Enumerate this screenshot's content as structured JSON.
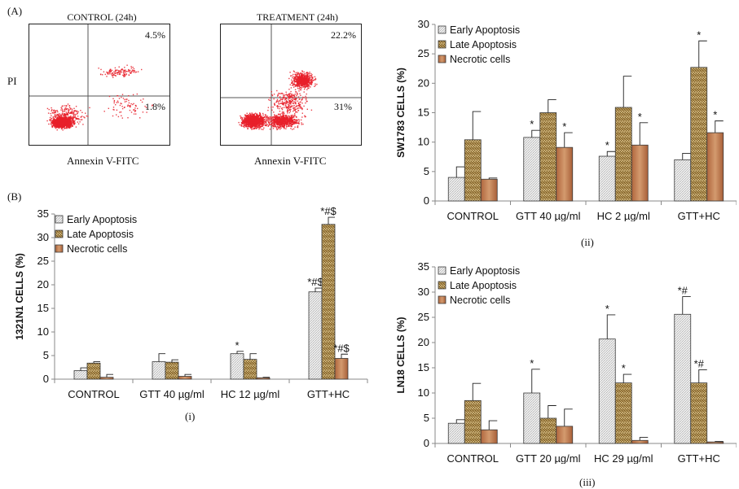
{
  "panel_a_label": "(A)",
  "panel_b_label": "(B)",
  "flow": [
    {
      "title": "CONTROL (24h)",
      "upper_right": "4.5%",
      "lower_right": "1.8%",
      "xlabel": "Annexin V-FITC",
      "ylabel": "PI"
    },
    {
      "title": "TREATMENT (24h)",
      "upper_right": "22.2%",
      "lower_right": "31%",
      "xlabel": "Annexin V-FITC",
      "ylabel": ""
    }
  ],
  "chart_data": [
    {
      "id": "i",
      "type": "bar",
      "caption": "(i)",
      "ylabel": "1321N1 CELLS (%)",
      "ylim": [
        0,
        35
      ],
      "yticks": [
        0,
        5,
        10,
        15,
        20,
        25,
        30,
        35
      ],
      "categories": [
        "CONTROL",
        "GTT 40 µg/ml",
        "HC 12 µg/ml",
        "GTT+HC"
      ],
      "legend_position": "top-left",
      "series": [
        {
          "name": "Early Apoptosis",
          "values": [
            1.8,
            3.7,
            5.4,
            18.5
          ],
          "errors": [
            0.6,
            1.7,
            0.5,
            0.8
          ],
          "annotations": [
            "",
            "",
            "*",
            "*#$"
          ]
        },
        {
          "name": "Late Apoptosis",
          "values": [
            3.4,
            3.6,
            4.2,
            32.8
          ],
          "errors": [
            0.3,
            0.5,
            1.2,
            1.5
          ],
          "annotations": [
            "",
            "",
            "",
            "*#$"
          ]
        },
        {
          "name": "Necrotic cells",
          "values": [
            0.4,
            0.6,
            0.3,
            4.4
          ],
          "errors": [
            0.6,
            0.4,
            0.1,
            0.9
          ],
          "annotations": [
            "",
            "",
            "",
            "*#$"
          ]
        }
      ]
    },
    {
      "id": "ii",
      "type": "bar",
      "caption": "(ii)",
      "ylabel": "SW1783 CELLS (%)",
      "ylim": [
        0,
        30
      ],
      "yticks": [
        0,
        5,
        10,
        15,
        20,
        25,
        30
      ],
      "categories": [
        "CONTROL",
        "GTT 40 µg/ml",
        "HC 2 µg/ml",
        "GTT+HC"
      ],
      "legend_position": "top-left",
      "series": [
        {
          "name": "Early Apoptosis",
          "values": [
            4.0,
            10.8,
            7.6,
            7.0
          ],
          "errors": [
            1.8,
            1.2,
            0.8,
            1.1
          ],
          "annotations": [
            "",
            "*",
            "*",
            ""
          ]
        },
        {
          "name": "Late Apoptosis",
          "values": [
            10.4,
            15.0,
            15.9,
            22.7
          ],
          "errors": [
            4.8,
            2.2,
            5.3,
            4.5
          ],
          "annotations": [
            "",
            "",
            "",
            "*"
          ]
        },
        {
          "name": "Necrotic cells",
          "values": [
            3.7,
            9.1,
            9.5,
            11.6
          ],
          "errors": [
            0.2,
            2.5,
            3.8,
            2.0
          ],
          "annotations": [
            "",
            "*",
            "*",
            "*"
          ]
        }
      ]
    },
    {
      "id": "iii",
      "type": "bar",
      "caption": "(iii)",
      "ylabel": "LN18 CELLS (%)",
      "ylim": [
        0,
        35
      ],
      "yticks": [
        0,
        5,
        10,
        15,
        20,
        25,
        30,
        35
      ],
      "categories": [
        "CONTROL",
        "GTT 20 µg/ml",
        "HC 29 µg/ml",
        "GTT+HC"
      ],
      "legend_position": "top-left",
      "series": [
        {
          "name": "Early Apoptosis",
          "values": [
            4.0,
            10.0,
            20.7,
            25.6
          ],
          "errors": [
            0.7,
            4.7,
            4.8,
            3.5
          ],
          "annotations": [
            "",
            "*",
            "*",
            "*#"
          ]
        },
        {
          "name": "Late Apoptosis",
          "values": [
            8.5,
            5.0,
            12.0,
            12.0
          ],
          "errors": [
            3.4,
            2.5,
            1.7,
            2.6
          ],
          "annotations": [
            "",
            "",
            "*",
            "*#"
          ]
        },
        {
          "name": "Necrotic cells",
          "values": [
            2.7,
            3.4,
            0.6,
            0.3
          ],
          "errors": [
            1.8,
            3.4,
            0.6,
            0.1
          ],
          "annotations": [
            "",
            "",
            "",
            ""
          ]
        }
      ]
    }
  ]
}
